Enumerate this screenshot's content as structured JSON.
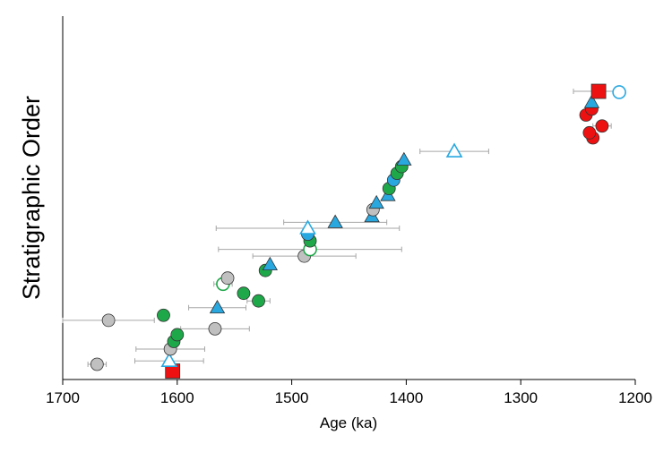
{
  "chart_data": {
    "type": "scatter",
    "xlabel": "Age (ka)",
    "ylabel": "Stratigraphic Order",
    "xlim": [
      1700,
      1200
    ],
    "x_reversed": true,
    "ylim": [
      0,
      43
    ],
    "xticks": [
      "1700",
      "1600",
      "1500",
      "1400",
      "1300",
      "1200"
    ],
    "xtick_values": [
      1700,
      1600,
      1500,
      1400,
      1300,
      1200
    ],
    "grid": false,
    "colors": {
      "gray": "#c0c0c0",
      "green": "#1fa84a",
      "blue": "#29a8e0",
      "red": "#ee1111",
      "error_bar": "#a6a6a6"
    },
    "points": [
      {
        "x": 1604,
        "y": 1,
        "marker": "square",
        "color": "red",
        "fill": true
      },
      {
        "x": 1670,
        "y": 1.8,
        "marker": "circle",
        "color": "gray",
        "fill": true,
        "xerr": 8
      },
      {
        "x": 1607,
        "y": 2.2,
        "marker": "triangle",
        "color": "blue",
        "fill": false,
        "xerr": 30
      },
      {
        "x": 1606,
        "y": 3.6,
        "marker": "circle",
        "color": "gray",
        "fill": true,
        "xerr": 30
      },
      {
        "x": 1603,
        "y": 4.5,
        "marker": "circle",
        "color": "green",
        "fill": true
      },
      {
        "x": 1600,
        "y": 5.3,
        "marker": "circle",
        "color": "green",
        "fill": true
      },
      {
        "x": 1567,
        "y": 6.0,
        "marker": "circle",
        "color": "gray",
        "fill": true,
        "xerr": 30
      },
      {
        "x": 1660,
        "y": 7.0,
        "marker": "circle",
        "color": "gray",
        "fill": true,
        "xerr": 40
      },
      {
        "x": 1612,
        "y": 7.6,
        "marker": "circle",
        "color": "green",
        "fill": true
      },
      {
        "x": 1565,
        "y": 8.5,
        "marker": "triangle",
        "color": "blue",
        "fill": true,
        "xerr": 25
      },
      {
        "x": 1529,
        "y": 9.3,
        "marker": "circle",
        "color": "green",
        "fill": true,
        "xerr": 10
      },
      {
        "x": 1542,
        "y": 10.2,
        "marker": "circle",
        "color": "green",
        "fill": true
      },
      {
        "x": 1560,
        "y": 11.3,
        "marker": "circle",
        "color": "green",
        "fill": false,
        "xerr": 8
      },
      {
        "x": 1556,
        "y": 12.0,
        "marker": "circle",
        "color": "gray",
        "fill": true,
        "xerr": 5
      },
      {
        "x": 1523,
        "y": 12.9,
        "marker": "circle",
        "color": "green",
        "fill": true
      },
      {
        "x": 1519,
        "y": 13.6,
        "marker": "triangle",
        "color": "blue",
        "fill": true
      },
      {
        "x": 1489,
        "y": 14.6,
        "marker": "circle",
        "color": "gray",
        "fill": true,
        "xerr": 45
      },
      {
        "x": 1484,
        "y": 15.4,
        "marker": "circle",
        "color": "green",
        "fill": false,
        "xerr": 80
      },
      {
        "x": 1484,
        "y": 16.4,
        "marker": "circle",
        "color": "green",
        "fill": true
      },
      {
        "x": 1486,
        "y": 17.2,
        "marker": "circle",
        "color": "blue",
        "fill": true
      },
      {
        "x": 1486,
        "y": 17.9,
        "marker": "triangle",
        "color": "blue",
        "fill": false,
        "xerr": 80
      },
      {
        "x": 1462,
        "y": 18.6,
        "marker": "triangle",
        "color": "blue",
        "fill": true,
        "xerr": 45
      },
      {
        "x": 1430,
        "y": 19.3,
        "marker": "triangle",
        "color": "blue",
        "fill": true
      },
      {
        "x": 1429,
        "y": 20.1,
        "marker": "circle",
        "color": "gray",
        "fill": true
      },
      {
        "x": 1426,
        "y": 20.9,
        "marker": "triangle",
        "color": "blue",
        "fill": true
      },
      {
        "x": 1416,
        "y": 21.8,
        "marker": "triangle",
        "color": "blue",
        "fill": true
      },
      {
        "x": 1415,
        "y": 22.6,
        "marker": "circle",
        "color": "green",
        "fill": true
      },
      {
        "x": 1411,
        "y": 23.6,
        "marker": "circle",
        "color": "blue",
        "fill": true
      },
      {
        "x": 1408,
        "y": 24.4,
        "marker": "circle",
        "color": "green",
        "fill": true
      },
      {
        "x": 1404,
        "y": 25.2,
        "marker": "circle",
        "color": "green",
        "fill": true
      },
      {
        "x": 1402,
        "y": 26.0,
        "marker": "triangle",
        "color": "blue",
        "fill": true
      },
      {
        "x": 1358,
        "y": 27.0,
        "marker": "triangle",
        "color": "blue",
        "fill": false,
        "xerr": 30
      },
      {
        "x": 1237,
        "y": 28.6,
        "marker": "circle",
        "color": "red",
        "fill": true
      },
      {
        "x": 1240,
        "y": 29.2,
        "marker": "circle",
        "color": "red",
        "fill": true
      },
      {
        "x": 1229,
        "y": 30.0,
        "marker": "circle",
        "color": "red",
        "fill": true,
        "xerr": 8
      },
      {
        "x": 1243,
        "y": 31.3,
        "marker": "circle",
        "color": "red",
        "fill": true
      },
      {
        "x": 1238,
        "y": 32.0,
        "marker": "circle",
        "color": "red",
        "fill": true
      },
      {
        "x": 1238,
        "y": 32.8,
        "marker": "triangle",
        "color": "blue",
        "fill": true
      },
      {
        "x": 1214,
        "y": 34.0,
        "marker": "circle",
        "color": "blue",
        "fill": false
      },
      {
        "x": 1232,
        "y": 34.1,
        "marker": "square",
        "color": "red",
        "fill": true,
        "xerr": 22
      }
    ]
  }
}
